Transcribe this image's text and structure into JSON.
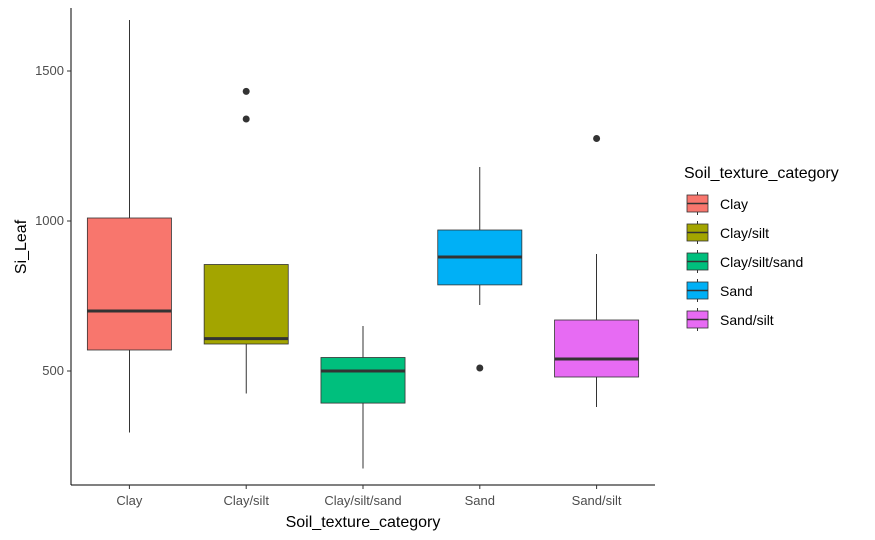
{
  "chart_data": {
    "type": "box",
    "xlabel": "Soil_texture_category",
    "ylabel": "Si_Leaf",
    "ylim": [
      120,
      1710
    ],
    "yticks": [
      500,
      1000,
      1500
    ],
    "categories": [
      "Clay",
      "Clay/silt",
      "Clay/silt/sand",
      "Sand",
      "Sand/silt"
    ],
    "boxes": [
      {
        "category": "Clay",
        "min": 295,
        "q1": 570,
        "median": 700,
        "q3": 1010,
        "max": 1670,
        "outliers": [],
        "color": "#F8766D"
      },
      {
        "category": "Clay/silt",
        "min": 425,
        "q1": 590,
        "median": 608,
        "q3": 855,
        "max": 855,
        "outliers": [
          1340,
          1432
        ],
        "color": "#A3A500"
      },
      {
        "category": "Clay/silt/sand",
        "min": 175,
        "q1": 393,
        "median": 500,
        "q3": 545,
        "max": 650,
        "outliers": [],
        "color": "#00BF7D"
      },
      {
        "category": "Sand",
        "min": 720,
        "q1": 787,
        "median": 880,
        "q3": 970,
        "max": 1180,
        "outliers": [
          510
        ],
        "color": "#00B0F6"
      },
      {
        "category": "Sand/silt",
        "min": 380,
        "q1": 480,
        "median": 540,
        "q3": 670,
        "max": 890,
        "outliers": [
          1275
        ],
        "color": "#E76BF3"
      }
    ],
    "legend": {
      "title": "Soil_texture_category",
      "position": "right",
      "items": [
        {
          "label": "Clay",
          "color": "#F8766D"
        },
        {
          "label": "Clay/silt",
          "color": "#A3A500"
        },
        {
          "label": "Clay/silt/sand",
          "color": "#00BF7D"
        },
        {
          "label": "Sand",
          "color": "#00B0F6"
        },
        {
          "label": "Sand/silt",
          "color": "#E76BF3"
        }
      ]
    },
    "grid": false
  }
}
